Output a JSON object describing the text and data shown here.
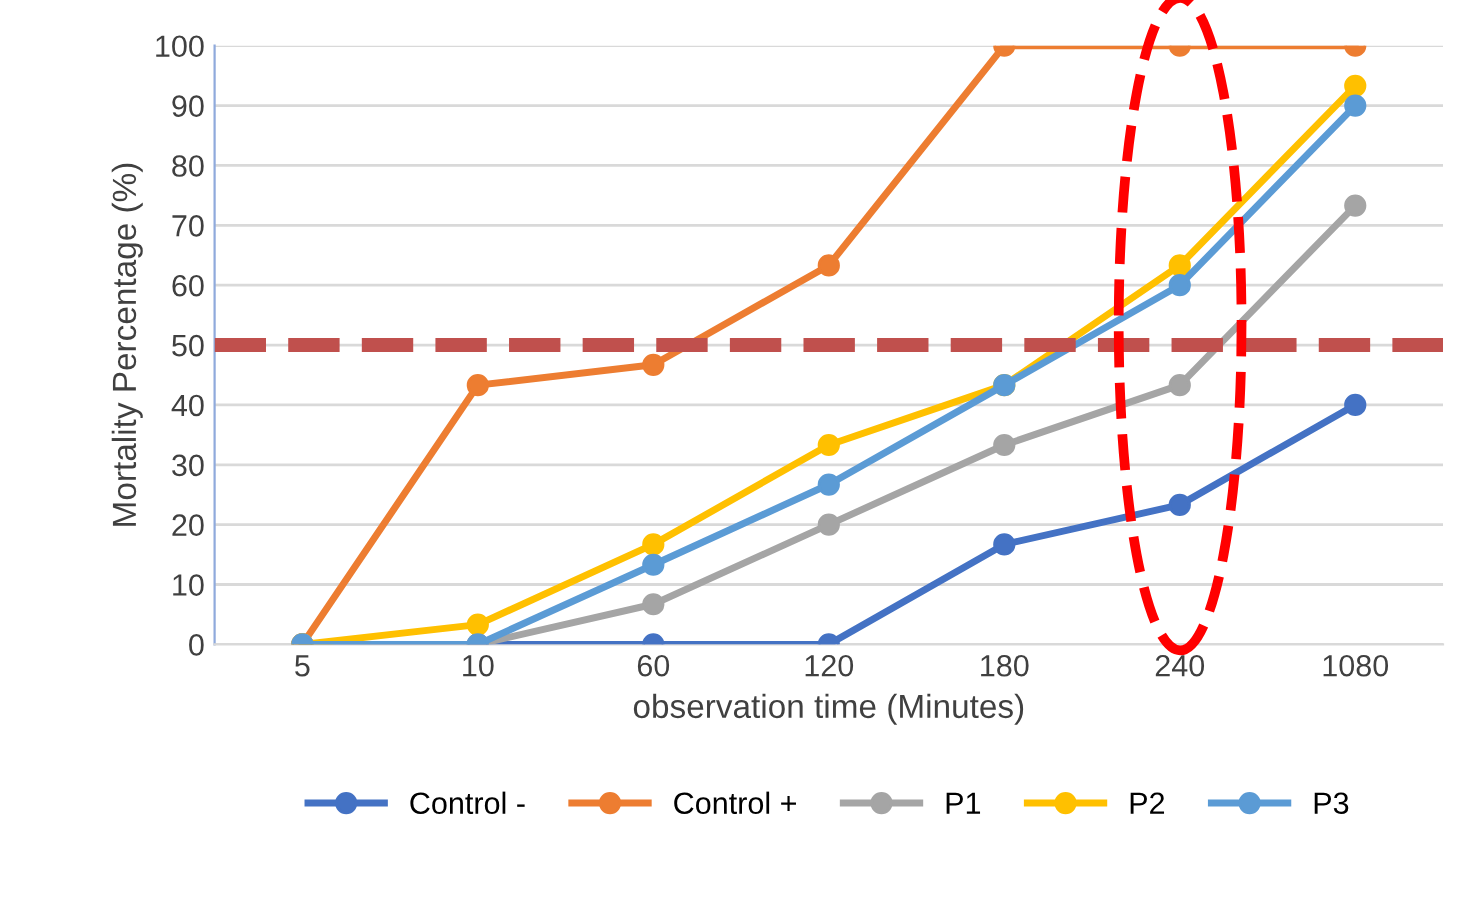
{
  "chart_data": {
    "type": "line",
    "xlabel": "observation time (Minutes)",
    "ylabel": "Mortality Percentage (%)",
    "categories": [
      "5",
      "10",
      "60",
      "120",
      "180",
      "240",
      "1080"
    ],
    "series": [
      {
        "name": "Control -",
        "color": "#4472c4",
        "values": [
          0,
          0,
          0,
          0,
          16.7,
          23.3,
          40
        ]
      },
      {
        "name": "Control +",
        "color": "#ed7d31",
        "values": [
          0,
          43.3,
          46.7,
          63.3,
          100,
          100,
          100
        ]
      },
      {
        "name": "P1",
        "color": "#a5a5a5",
        "values": [
          0,
          0,
          6.7,
          20,
          33.3,
          43.3,
          73.3
        ]
      },
      {
        "name": "P2",
        "color": "#ffc000",
        "values": [
          0,
          3.3,
          16.7,
          33.3,
          43.3,
          63.3,
          93.3
        ]
      },
      {
        "name": "P3",
        "color": "#5b9bd5",
        "values": [
          0,
          0,
          13.3,
          26.7,
          43.3,
          60,
          90
        ]
      }
    ],
    "ylim": [
      0,
      100
    ],
    "yticks": [
      0,
      10,
      20,
      30,
      40,
      50,
      60,
      70,
      80,
      90,
      100
    ],
    "ref_lines": [
      {
        "axis": "y",
        "value": 50,
        "color": "#c0504d",
        "line_style": "dashed"
      }
    ],
    "grid": "y",
    "legend": "bottom",
    "marker": "circle",
    "line_style": "solid"
  }
}
